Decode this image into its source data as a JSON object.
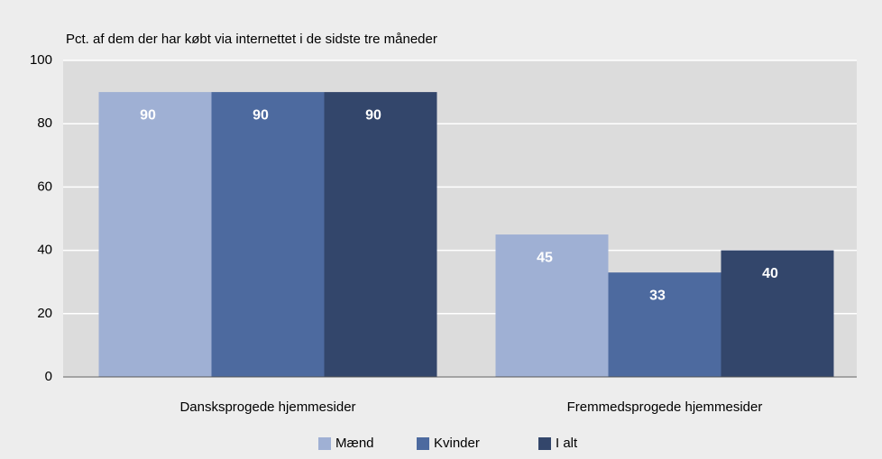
{
  "chart_data": {
    "type": "bar",
    "subtitle": "Pct. af dem der har købt via internettet i de sidste tre måneder",
    "categories": [
      "Dansksprogede hjemmesider",
      "Fremmedsprogede hjemmesider"
    ],
    "series": [
      {
        "name": "Mænd",
        "color": "#9fb0d4",
        "values": [
          90,
          45
        ]
      },
      {
        "name": "Kvinder",
        "color": "#4d6a9f",
        "values": [
          90,
          33
        ]
      },
      {
        "name": "I alt",
        "color": "#33466b",
        "values": [
          90,
          40
        ]
      }
    ],
    "ylim": [
      0,
      100
    ],
    "yticks": [
      0,
      20,
      40,
      60,
      80,
      100
    ],
    "grid": true,
    "legend": "bottom"
  }
}
